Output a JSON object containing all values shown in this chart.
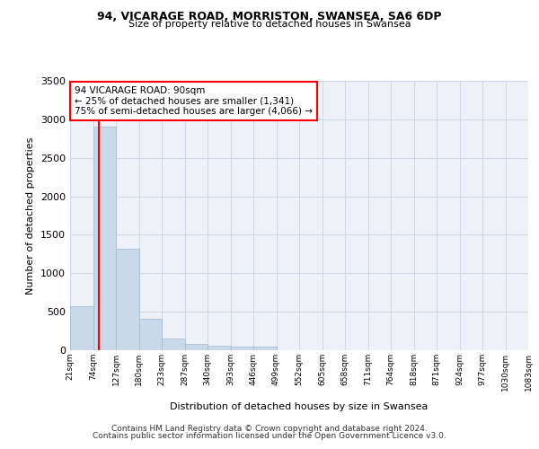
{
  "title1": "94, VICARAGE ROAD, MORRISTON, SWANSEA, SA6 6DP",
  "title2": "Size of property relative to detached houses in Swansea",
  "xlabel": "Distribution of detached houses by size in Swansea",
  "ylabel": "Number of detached properties",
  "bar_values": [
    570,
    2910,
    1320,
    410,
    155,
    80,
    55,
    50,
    45,
    0,
    0,
    0,
    0,
    0,
    0,
    0,
    0,
    0,
    0,
    0
  ],
  "bin_labels": [
    "21sqm",
    "74sqm",
    "127sqm",
    "180sqm",
    "233sqm",
    "287sqm",
    "340sqm",
    "393sqm",
    "446sqm",
    "499sqm",
    "552sqm",
    "605sqm",
    "658sqm",
    "711sqm",
    "764sqm",
    "818sqm",
    "871sqm",
    "924sqm",
    "977sqm",
    "1030sqm",
    "1083sqm"
  ],
  "bar_color": "#c9d9ea",
  "bar_edge_color": "#a0b8d0",
  "grid_color": "#d0d8e8",
  "background_color": "#eef2f8",
  "red_line_x": 1.25,
  "annotation_text": "94 VICARAGE ROAD: 90sqm\n← 25% of detached houses are smaller (1,341)\n75% of semi-detached houses are larger (4,066) →",
  "annotation_box_color": "white",
  "annotation_border_color": "red",
  "footer_line1": "Contains HM Land Registry data © Crown copyright and database right 2024.",
  "footer_line2": "Contains public sector information licensed under the Open Government Licence v3.0.",
  "ylim": [
    0,
    3500
  ],
  "yticks": [
    0,
    500,
    1000,
    1500,
    2000,
    2500,
    3000,
    3500
  ]
}
